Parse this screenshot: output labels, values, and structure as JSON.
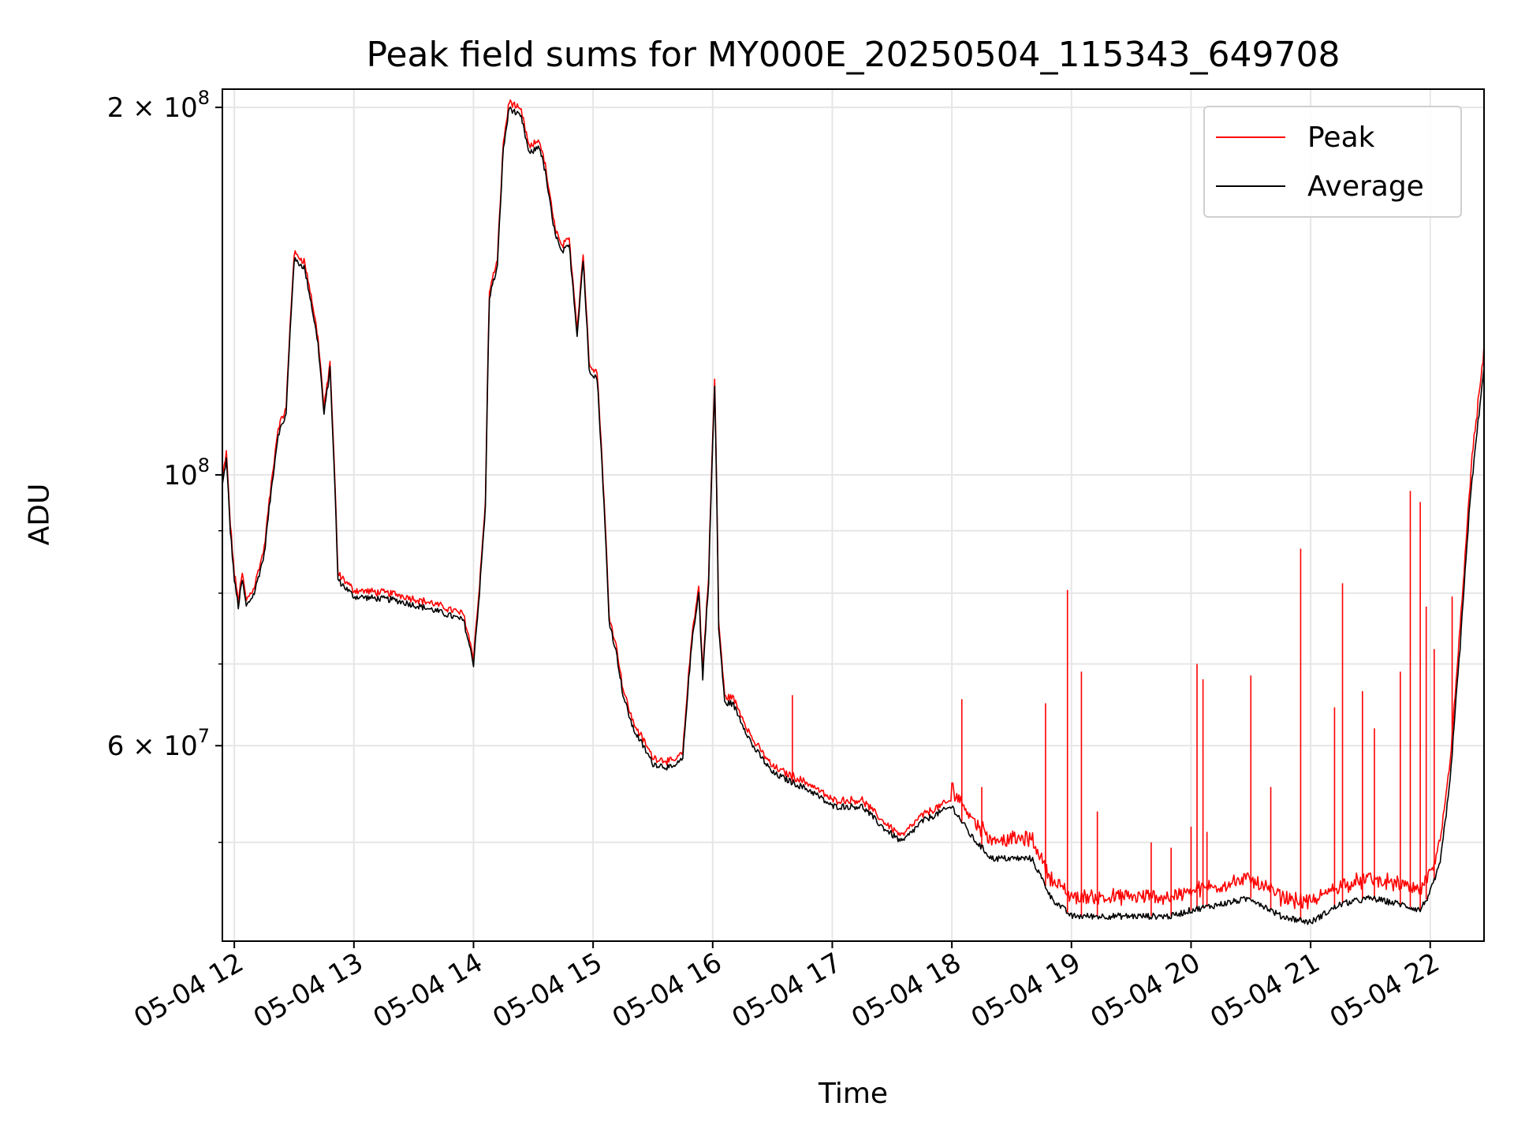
{
  "chart_data": {
    "type": "line",
    "title": "Peak field sums for MY000E_20250504_115343_649708",
    "xlabel": "Time",
    "ylabel": "ADU",
    "yscale": "log",
    "ylim": [
      41500000,
      207000000
    ],
    "xlim": [
      "05-04 11:54",
      "05-04 22:27"
    ],
    "x_ticks": [
      "05-04 12",
      "05-04 13",
      "05-04 14",
      "05-04 15",
      "05-04 16",
      "05-04 17",
      "05-04 18",
      "05-04 19",
      "05-04 20",
      "05-04 21",
      "05-04 22"
    ],
    "y_ticks": [
      {
        "value": 200000000,
        "label": "2 × 10^8"
      },
      {
        "value": 100000000,
        "label": "10^8"
      },
      {
        "value": 60000000,
        "label": "6 × 10^7"
      }
    ],
    "y_minor_ticks": [
      50000000,
      70000000,
      80000000,
      90000000
    ],
    "grid": true,
    "legend_position": "top-right",
    "x_time_format": "MM-DD HH:MM",
    "series": [
      {
        "name": "Average",
        "color": "#000000",
        "x": [
          "05-04 11:54",
          "05-04 11:56",
          "05-04 11:58",
          "05-04 12:00",
          "05-04 12:02",
          "05-04 12:04",
          "05-04 12:06",
          "05-04 12:10",
          "05-04 12:15",
          "05-04 12:22",
          "05-04 12:26",
          "05-04 12:30",
          "05-04 12:35",
          "05-04 12:38",
          "05-04 12:42",
          "05-04 12:45",
          "05-04 12:48",
          "05-04 12:52",
          "05-04 13:00",
          "05-04 13:20",
          "05-04 13:40",
          "05-04 13:55",
          "05-04 14:00",
          "05-04 14:03",
          "05-04 14:06",
          "05-04 14:08",
          "05-04 14:12",
          "05-04 14:15",
          "05-04 14:18",
          "05-04 14:24",
          "05-04 14:28",
          "05-04 14:33",
          "05-04 14:36",
          "05-04 14:40",
          "05-04 14:44",
          "05-04 14:48",
          "05-04 14:52",
          "05-04 14:55",
          "05-04 14:58",
          "05-04 15:02",
          "05-04 15:05",
          "05-04 15:08",
          "05-04 15:12",
          "05-04 15:15",
          "05-04 15:20",
          "05-04 15:30",
          "05-04 15:40",
          "05-04 15:45",
          "05-04 15:48",
          "05-04 15:50",
          "05-04 15:53",
          "05-04 15:55",
          "05-04 15:58",
          "05-04 16:01",
          "05-04 16:03",
          "05-04 16:06",
          "05-04 16:10",
          "05-04 16:20",
          "05-04 16:30",
          "05-04 16:40",
          "05-04 16:50",
          "05-04 17:00",
          "05-04 17:15",
          "05-04 17:25",
          "05-04 17:35",
          "05-04 17:45",
          "05-04 18:00",
          "05-04 18:10",
          "05-04 18:20",
          "05-04 18:40",
          "05-04 18:50",
          "05-04 19:00",
          "05-04 19:30",
          "05-04 19:50",
          "05-04 20:00",
          "05-04 20:15",
          "05-04 20:30",
          "05-04 20:45",
          "05-04 21:00",
          "05-04 21:15",
          "05-04 21:30",
          "05-04 21:45",
          "05-04 21:55",
          "05-04 22:00",
          "05-04 22:05",
          "05-04 22:10",
          "05-04 22:15",
          "05-04 22:20",
          "05-04 22:27"
        ],
        "y": [
          98,
          103,
          90,
          82,
          78,
          82,
          78,
          80,
          86,
          108,
          112,
          150,
          148,
          140,
          128,
          112,
          122,
          82,
          79.5,
          79,
          77.5,
          76,
          70,
          80,
          94,
          140,
          148,
          185,
          200,
          196,
          183,
          186,
          177,
          160,
          152,
          154,
          130,
          150,
          122,
          120,
          98,
          76,
          71,
          66,
          62,
          58,
          57.5,
          58.5,
          68,
          74,
          80,
          68,
          82,
          118,
          75,
          65,
          65,
          60,
          57,
          56,
          55,
          53.5,
          53.5,
          51.5,
          50,
          52,
          53.5,
          50.5,
          48.5,
          48.5,
          45,
          43.5,
          43.5,
          43.5,
          44,
          44.5,
          45,
          43.5,
          43,
          44.5,
          45,
          44.5,
          44,
          45.5,
          48,
          56,
          72,
          95,
          122
        ]
      },
      {
        "name": "Peak",
        "color": "#ff0000",
        "spikes": [
          {
            "x": "05-04 16:40",
            "y": 66
          },
          {
            "x": "05-04 18:05",
            "y": 65.5
          },
          {
            "x": "05-04 18:15",
            "y": 55.5
          },
          {
            "x": "05-04 18:47",
            "y": 65
          },
          {
            "x": "05-04 18:58",
            "y": 80.5
          },
          {
            "x": "05-04 19:05",
            "y": 69
          },
          {
            "x": "05-04 19:13",
            "y": 53
          },
          {
            "x": "05-04 19:40",
            "y": 50
          },
          {
            "x": "05-04 19:50",
            "y": 49.5
          },
          {
            "x": "05-04 20:00",
            "y": 51.5
          },
          {
            "x": "05-04 20:03",
            "y": 70
          },
          {
            "x": "05-04 20:06",
            "y": 68
          },
          {
            "x": "05-04 20:08",
            "y": 51
          },
          {
            "x": "05-04 20:30",
            "y": 68.5
          },
          {
            "x": "05-04 20:40",
            "y": 55.5
          },
          {
            "x": "05-04 20:55",
            "y": 87
          },
          {
            "x": "05-04 21:12",
            "y": 64.5
          },
          {
            "x": "05-04 21:16",
            "y": 81.5
          },
          {
            "x": "05-04 21:26",
            "y": 66.5
          },
          {
            "x": "05-04 21:32",
            "y": 62
          },
          {
            "x": "05-04 21:45",
            "y": 69
          },
          {
            "x": "05-04 21:50",
            "y": 97
          },
          {
            "x": "05-04 21:55",
            "y": 95
          },
          {
            "x": "05-04 21:58",
            "y": 78
          },
          {
            "x": "05-04 22:02",
            "y": 72
          },
          {
            "x": "05-04 22:11",
            "y": 79.5
          }
        ]
      }
    ],
    "y_unit_in_series": "millions of ADU"
  }
}
